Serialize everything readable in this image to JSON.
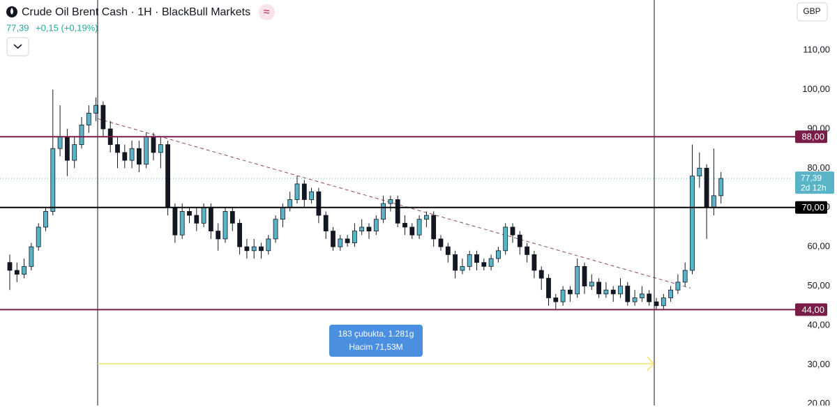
{
  "chart_data": {
    "type": "candlestick",
    "title": "Crude Oil Brent Cash · 1H · BlackBull Markets",
    "last_price": {
      "value": 77.39,
      "label": "77,39"
    },
    "price_change": "+0,15 (+0,19%)",
    "currency": "GBP",
    "countdown": "2d 12h",
    "up_color": "#5ab4c8",
    "down_color": "#131722",
    "open": [
      56,
      54,
      53,
      55,
      60,
      65,
      69,
      85,
      88,
      82,
      86,
      91,
      94,
      96,
      90,
      86,
      84,
      82,
      85,
      81,
      88,
      84,
      86,
      70,
      63,
      69,
      68,
      66,
      70,
      64,
      62,
      69,
      66,
      60,
      59,
      60,
      59,
      62,
      67,
      70,
      72,
      76,
      72,
      74,
      68,
      64,
      60,
      62,
      61,
      64,
      65,
      64,
      67,
      71,
      72,
      66,
      65,
      63,
      67,
      68,
      62,
      60,
      58,
      54,
      55,
      58,
      56,
      55,
      57,
      59,
      65,
      63,
      60,
      58,
      54,
      52,
      47,
      46,
      49,
      48,
      55,
      50,
      51,
      48,
      49,
      48,
      50,
      46,
      47,
      48,
      46,
      45,
      47,
      49,
      51,
      54,
      78,
      80,
      70,
      73
    ],
    "high": [
      58,
      56,
      57,
      61,
      66,
      70,
      100,
      96,
      90,
      88,
      93,
      96,
      98,
      97,
      92,
      88,
      86,
      87,
      87,
      89,
      89,
      88,
      87,
      71,
      71,
      70,
      70,
      71,
      71,
      66,
      70,
      70,
      67,
      62,
      62,
      61,
      63,
      68,
      71,
      74,
      78,
      77,
      75,
      75,
      69,
      65,
      63,
      63,
      66,
      67,
      66,
      68,
      73,
      73,
      73,
      68,
      66,
      68,
      69,
      69,
      63,
      61,
      59,
      57,
      59,
      59,
      57,
      58,
      60,
      66,
      66,
      64,
      61,
      59,
      55,
      53,
      48,
      50,
      50,
      57,
      56,
      53,
      52,
      51,
      50,
      52,
      51,
      49,
      50,
      49,
      47,
      48,
      50,
      53,
      56,
      86,
      84,
      81,
      85,
      79
    ],
    "low": [
      49,
      51,
      52,
      54,
      59,
      64,
      68,
      83,
      78,
      80,
      85,
      89,
      92,
      88,
      84,
      80,
      80,
      80,
      79,
      80,
      82,
      80,
      68,
      61,
      62,
      66,
      64,
      65,
      62,
      59,
      61,
      64,
      58,
      57,
      57,
      57,
      58,
      61,
      65,
      69,
      71,
      70,
      71,
      66,
      62,
      59,
      59,
      60,
      60,
      63,
      62,
      63,
      66,
      69,
      65,
      63,
      62,
      62,
      65,
      60,
      59,
      56,
      52,
      53,
      54,
      54,
      54,
      54,
      56,
      58,
      61,
      58,
      56,
      52,
      49,
      45,
      44,
      45,
      46,
      47,
      48,
      49,
      47,
      47,
      46,
      47,
      45,
      45,
      46,
      45,
      44,
      44,
      46,
      48,
      50,
      53,
      75,
      62,
      68,
      71
    ],
    "close": [
      54,
      53,
      55,
      60,
      65,
      69,
      85,
      88,
      82,
      86,
      91,
      94,
      96,
      90,
      86,
      84,
      82,
      85,
      81,
      88,
      84,
      86,
      70,
      63,
      69,
      68,
      66,
      70,
      64,
      62,
      69,
      66,
      60,
      59,
      60,
      59,
      62,
      67,
      70,
      72,
      76,
      72,
      74,
      68,
      64,
      60,
      62,
      61,
      64,
      65,
      64,
      67,
      71,
      72,
      66,
      65,
      63,
      67,
      68,
      62,
      60,
      58,
      54,
      55,
      58,
      56,
      55,
      57,
      59,
      65,
      63,
      60,
      58,
      54,
      52,
      47,
      46,
      49,
      48,
      55,
      50,
      51,
      48,
      49,
      48,
      50,
      46,
      47,
      48,
      46,
      45,
      47,
      49,
      51,
      54,
      78,
      80,
      70,
      73,
      77.39
    ],
    "ylim": [
      19.6,
      122.8
    ],
    "yticks": [
      {
        "value": 20,
        "label": "20,00"
      },
      {
        "value": 30,
        "label": "30,00"
      },
      {
        "value": 40,
        "label": "40,00"
      },
      {
        "value": 50,
        "label": "50,00"
      },
      {
        "value": 60,
        "label": "60,00"
      },
      {
        "value": 70,
        "label": "70,00"
      },
      {
        "value": 80,
        "label": "80,00"
      },
      {
        "value": 90,
        "label": "90,00"
      },
      {
        "value": 100,
        "label": "100,00"
      },
      {
        "value": 110,
        "label": "110,00"
      }
    ],
    "levels": [
      {
        "value": 88,
        "label": "88,00",
        "color": "#7a1c48"
      },
      {
        "value": 70,
        "label": "70,00",
        "color": "#000000"
      },
      {
        "value": 44,
        "label": "44,00",
        "color": "#7a1c48"
      }
    ],
    "trendline": {
      "start": 92.6,
      "end": 49.5,
      "color": "#8a4a5a"
    },
    "measure": {
      "line1": "183 çubukta, 1.281g",
      "line2": "Hacim 71,53M"
    }
  }
}
